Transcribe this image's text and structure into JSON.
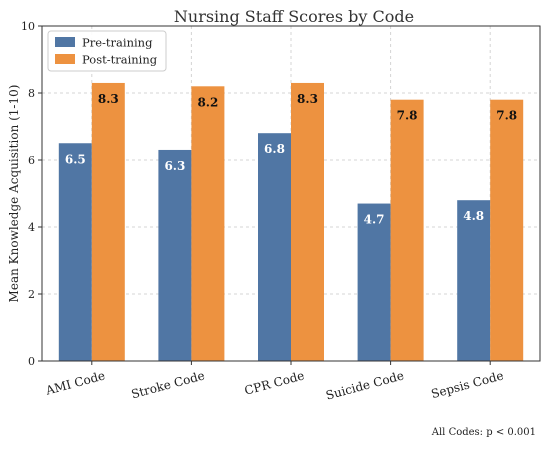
{
  "chart_data": {
    "type": "bar",
    "title": "Nursing Staff Scores by Code",
    "xlabel": "",
    "ylabel": "Mean Knowledge Acquisition (1-10)",
    "ylim": [
      0,
      10
    ],
    "yticks": [
      0,
      2,
      4,
      6,
      8,
      10
    ],
    "grid": true,
    "legend_position": "top-left",
    "categories": [
      "AMI Code",
      "Stroke Code",
      "CPR Code",
      "Suicide Code",
      "Sepsis Code"
    ],
    "series": [
      {
        "name": "Pre-training",
        "color": "#5076a4",
        "values": [
          6.5,
          6.3,
          6.8,
          4.7,
          4.8
        ]
      },
      {
        "name": "Post-training",
        "color": "#ed9240",
        "values": [
          8.3,
          8.2,
          8.3,
          7.8,
          7.8
        ]
      }
    ],
    "annotation": "All Codes: p < 0.001"
  }
}
